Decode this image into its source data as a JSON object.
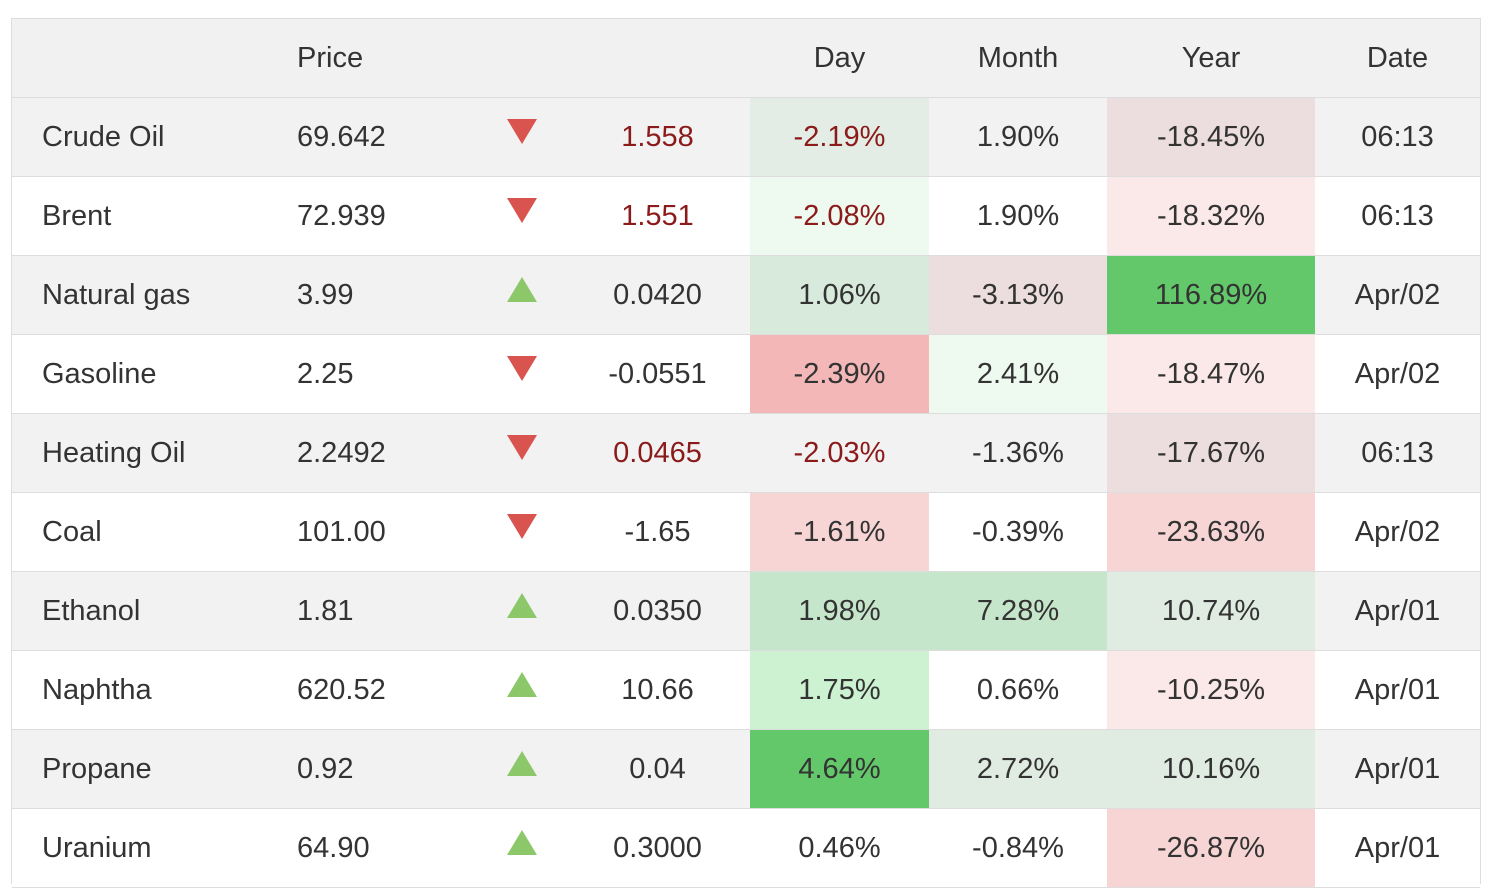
{
  "headers": {
    "name": "",
    "price": "Price",
    "arrow": "",
    "change": "",
    "day": "Day",
    "month": "Month",
    "year": "Year",
    "date": "Date"
  },
  "colors": {
    "down_arrow": "#d9534f",
    "up_arrow": "#8cc86a",
    "negative_change_text": "#8b1a1a",
    "strong_green": "#63c86a",
    "light_green": "#c6e9cb",
    "pale_green": "#eaf7ec",
    "strong_red": "#f3b7b7",
    "light_red": "#f8d5d5",
    "pale_red": "#fbe9e9",
    "grey_red": "#ecdede",
    "grey_green": "#e0ece2"
  },
  "rows": [
    {
      "name": "Crude Oil",
      "price": "69.642",
      "direction": "down",
      "change": "1.558",
      "change_style": "negative",
      "day": "-2.19%",
      "day_bg": "#e3ede5",
      "day_style": "negative",
      "month": "1.90%",
      "month_bg": "",
      "year": "-18.45%",
      "year_bg": "#ecdede",
      "date": "06:13"
    },
    {
      "name": "Brent",
      "price": "72.939",
      "direction": "down",
      "change": "1.551",
      "change_style": "negative",
      "day": "-2.08%",
      "day_bg": "#eef9ef",
      "day_style": "negative",
      "month": "1.90%",
      "month_bg": "",
      "year": "-18.32%",
      "year_bg": "#fbe9e9",
      "date": "06:13"
    },
    {
      "name": "Natural gas",
      "price": "3.99",
      "direction": "up",
      "change": "0.0420",
      "change_style": "normal",
      "day": "1.06%",
      "day_bg": "#d7eadb",
      "day_style": "normal",
      "month": "-3.13%",
      "month_bg": "#ecdede",
      "year": "116.89%",
      "year_bg": "#63c86a",
      "date": "Apr/02"
    },
    {
      "name": "Gasoline",
      "price": "2.25",
      "direction": "down",
      "change": "-0.0551",
      "change_style": "normal",
      "day": "-2.39%",
      "day_bg": "#f3b7b7",
      "day_style": "normal",
      "month": "2.41%",
      "month_bg": "#eef9ef",
      "year": "-18.47%",
      "year_bg": "#fbe9e9",
      "date": "Apr/02"
    },
    {
      "name": "Heating Oil",
      "price": "2.2492",
      "direction": "down",
      "change": "0.0465",
      "change_style": "negative",
      "day": "-2.03%",
      "day_bg": "",
      "day_style": "negative",
      "month": "-1.36%",
      "month_bg": "",
      "year": "-17.67%",
      "year_bg": "#ecdede",
      "date": "06:13"
    },
    {
      "name": "Coal",
      "price": "101.00",
      "direction": "down",
      "change": "-1.65",
      "change_style": "normal",
      "day": "-1.61%",
      "day_bg": "#f8d5d5",
      "day_style": "normal",
      "month": "-0.39%",
      "month_bg": "",
      "year": "-23.63%",
      "year_bg": "#f8d5d5",
      "date": "Apr/02"
    },
    {
      "name": "Ethanol",
      "price": "1.81",
      "direction": "up",
      "change": "0.0350",
      "change_style": "normal",
      "day": "1.98%",
      "day_bg": "#c6e6cb",
      "day_style": "normal",
      "month": "7.28%",
      "month_bg": "#c6e6cb",
      "year": "10.74%",
      "year_bg": "#e0ece2",
      "date": "Apr/01"
    },
    {
      "name": "Naphtha",
      "price": "620.52",
      "direction": "up",
      "change": "10.66",
      "change_style": "normal",
      "day": "1.75%",
      "day_bg": "#ccf2d2",
      "day_style": "normal",
      "month": "0.66%",
      "month_bg": "",
      "year": "-10.25%",
      "year_bg": "#fbe9e9",
      "date": "Apr/01"
    },
    {
      "name": "Propane",
      "price": "0.92",
      "direction": "up",
      "change": "0.04",
      "change_style": "normal",
      "day": "4.64%",
      "day_bg": "#63c86a",
      "day_style": "normal",
      "month": "2.72%",
      "month_bg": "#e0ece2",
      "year": "10.16%",
      "year_bg": "#e0ece2",
      "date": "Apr/01"
    },
    {
      "name": "Uranium",
      "price": "64.90",
      "direction": "up",
      "change": "0.3000",
      "change_style": "normal",
      "day": "0.46%",
      "day_bg": "",
      "day_style": "normal",
      "month": "-0.84%",
      "month_bg": "",
      "year": "-26.87%",
      "year_bg": "#f8d5d5",
      "date": "Apr/01"
    }
  ]
}
